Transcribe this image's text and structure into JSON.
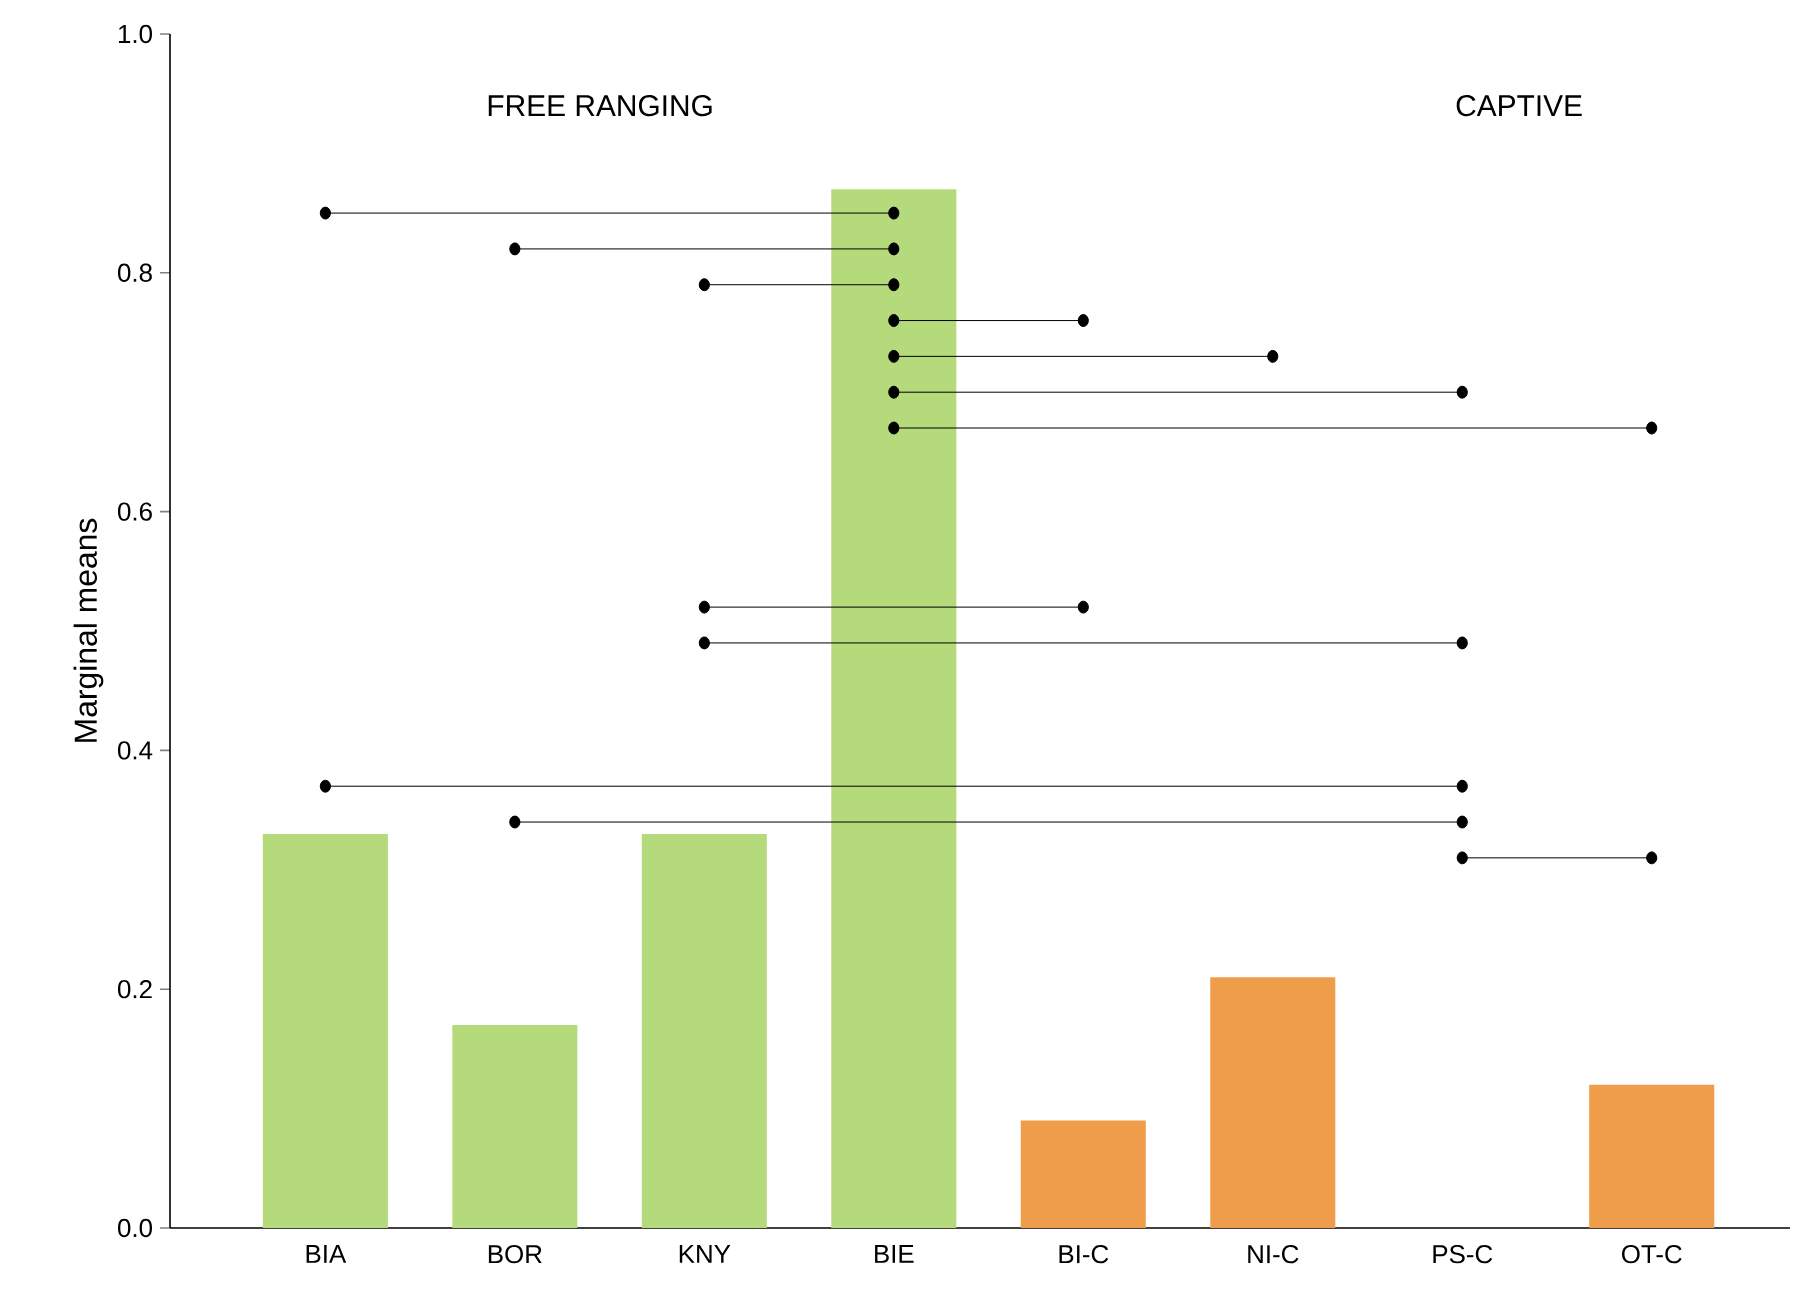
{
  "chart_data": {
    "type": "bar",
    "ylabel": "Marginal means",
    "categories": [
      "BIA",
      "BOR",
      "KNY",
      "BIE",
      "BI-C",
      "NI-C",
      "PS-C",
      "OT-C"
    ],
    "values": [
      0.33,
      0.17,
      0.33,
      0.87,
      0.09,
      0.21,
      0,
      0.12
    ],
    "colors": [
      "#b5da7c",
      "#b5da7c",
      "#b5da7c",
      "#b5da7c",
      "#f09d4b",
      "#f09d4b",
      "#f09d4b",
      "#f09d4b"
    ],
    "ylim": [
      0,
      1
    ],
    "yticks": [
      {
        "value": 0,
        "label": "0.0"
      },
      {
        "value": 0.2,
        "label": "0.2"
      },
      {
        "value": 0.4,
        "label": "0.4"
      },
      {
        "value": 0.6,
        "label": "0.6"
      },
      {
        "value": 0.8,
        "label": "0.8"
      },
      {
        "value": 1,
        "label": "1.0"
      }
    ],
    "annotations": [
      "FREE RANGING",
      "CAPTIVE"
    ],
    "series": [
      {
        "type": "line",
        "color": "#000000",
        "marker": "circle",
        "x": [
          "BIA",
          "BIE"
        ],
        "values": [
          0.85,
          0.85
        ]
      },
      {
        "type": "line",
        "color": "#000000",
        "marker": "circle",
        "x": [
          "BOR",
          "BIE"
        ],
        "values": [
          0.82,
          0.82
        ]
      },
      {
        "type": "line",
        "color": "#000000",
        "marker": "circle",
        "x": [
          "KNY",
          "BIE"
        ],
        "values": [
          0.79,
          0.79
        ]
      },
      {
        "type": "line",
        "color": "#000000",
        "marker": "circle",
        "x": [
          "BIE",
          "BI-C"
        ],
        "values": [
          0.76,
          0.76
        ]
      },
      {
        "type": "line",
        "color": "#000000",
        "marker": "circle",
        "x": [
          "BIE",
          "NI-C"
        ],
        "values": [
          0.73,
          0.73
        ]
      },
      {
        "type": "line",
        "color": "#000000",
        "marker": "circle",
        "x": [
          "BIE",
          "PS-C"
        ],
        "values": [
          0.7,
          0.7
        ]
      },
      {
        "type": "line",
        "color": "#000000",
        "marker": "circle",
        "x": [
          "BIE",
          "OT-C"
        ],
        "values": [
          0.67,
          0.67
        ]
      },
      {
        "type": "line",
        "color": "#000000",
        "marker": "circle",
        "x": [
          "KNY",
          "BI-C"
        ],
        "values": [
          0.52,
          0.52
        ]
      },
      {
        "type": "line",
        "color": "#000000",
        "marker": "circle",
        "x": [
          "KNY",
          "PS-C"
        ],
        "values": [
          0.49,
          0.49
        ]
      },
      {
        "type": "line",
        "color": "#000000",
        "marker": "circle",
        "x": [
          "BIA",
          "PS-C"
        ],
        "values": [
          0.37,
          0.37
        ]
      },
      {
        "type": "line",
        "color": "#000000",
        "marker": "circle",
        "x": [
          "BOR",
          "PS-C"
        ],
        "values": [
          0.34,
          0.34
        ]
      },
      {
        "type": "line",
        "color": "#000000",
        "marker": "circle",
        "x": [
          "PS-C",
          "OT-C"
        ],
        "values": [
          0.31,
          0.31
        ]
      }
    ]
  }
}
